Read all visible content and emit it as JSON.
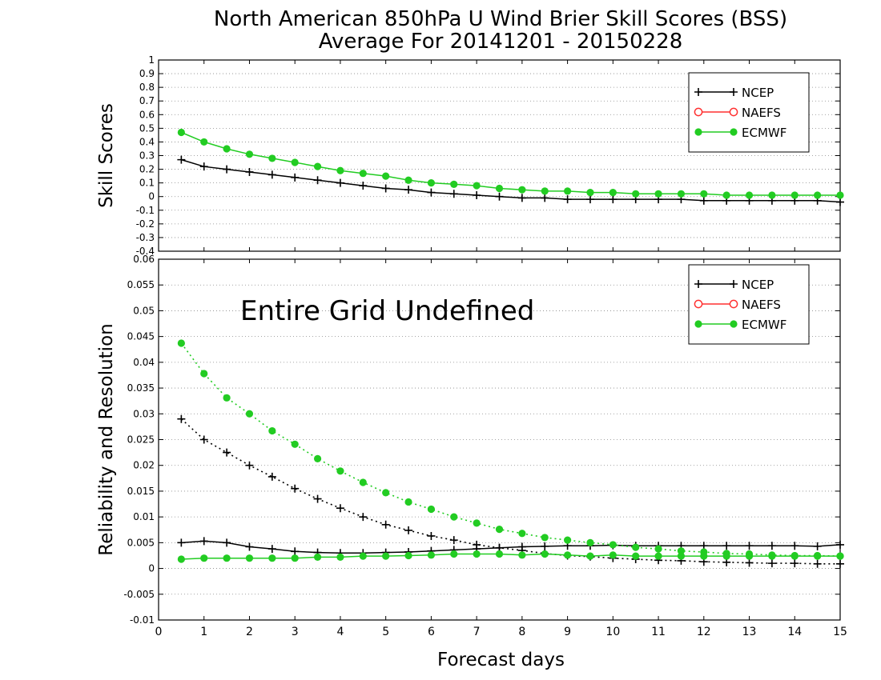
{
  "title": {
    "line1": "North American 850hPa U Wind Brier Skill Scores (BSS)",
    "line2": "Average For 20141201 - 20150228"
  },
  "colors": {
    "NCEP": "#000000",
    "NAEFS": "#ff3030",
    "ECMWF": "#22cc22"
  },
  "chart_data": [
    {
      "type": "line",
      "ylabel": "Skill Scores",
      "xlabel": "",
      "xlim": [
        0,
        15
      ],
      "ylim": [
        -0.4,
        1
      ],
      "x_ticks": [
        0,
        1,
        2,
        3,
        4,
        5,
        6,
        7,
        8,
        9,
        10,
        11,
        12,
        13,
        14,
        15
      ],
      "y_ticks": [
        "-0.4",
        "-0.3",
        "-0.2",
        "-0.1",
        "0",
        "0.1",
        "0.2",
        "0.3",
        "0.4",
        "0.5",
        "0.6",
        "0.7",
        "0.8",
        "0.9",
        "1"
      ],
      "grid": "horizontal dotted",
      "legend_position": "top-right",
      "legend": [
        "NCEP",
        "NAEFS",
        "ECMWF"
      ],
      "x": [
        0.5,
        1,
        1.5,
        2,
        2.5,
        3,
        3.5,
        4,
        4.5,
        5,
        5.5,
        6,
        6.5,
        7,
        7.5,
        8,
        8.5,
        9,
        9.5,
        10,
        10.5,
        11,
        11.5,
        12,
        12.5,
        13,
        13.5,
        14,
        14.5,
        15
      ],
      "series": [
        {
          "name": "NCEP",
          "style": "solid",
          "marker": "plus",
          "values": [
            0.27,
            0.22,
            0.2,
            0.18,
            0.16,
            0.14,
            0.12,
            0.1,
            0.08,
            0.06,
            0.05,
            0.03,
            0.02,
            0.01,
            0.0,
            -0.01,
            -0.01,
            -0.02,
            -0.02,
            -0.02,
            -0.02,
            -0.02,
            -0.02,
            -0.03,
            -0.03,
            -0.03,
            -0.03,
            -0.03,
            -0.03,
            -0.04
          ]
        },
        {
          "name": "ECMWF",
          "style": "solid",
          "marker": "circle",
          "values": [
            0.47,
            0.4,
            0.35,
            0.31,
            0.28,
            0.25,
            0.22,
            0.19,
            0.17,
            0.15,
            0.12,
            0.1,
            0.09,
            0.08,
            0.06,
            0.05,
            0.04,
            0.04,
            0.03,
            0.03,
            0.02,
            0.02,
            0.02,
            0.02,
            0.01,
            0.01,
            0.01,
            0.01,
            0.01,
            0.01
          ]
        }
      ]
    },
    {
      "type": "line",
      "ylabel": "Reliability and Resolution",
      "xlabel": "Forecast days",
      "xlim": [
        0,
        15
      ],
      "ylim": [
        -0.01,
        0.06
      ],
      "x_ticks": [
        0,
        1,
        2,
        3,
        4,
        5,
        6,
        7,
        8,
        9,
        10,
        11,
        12,
        13,
        14,
        15
      ],
      "y_ticks": [
        "-0.01",
        "-0.005",
        "0",
        "0.005",
        "0.01",
        "0.015",
        "0.02",
        "0.025",
        "0.03",
        "0.035",
        "0.04",
        "0.045",
        "0.05",
        "0.055",
        "0.06"
      ],
      "grid": "horizontal dotted",
      "legend_position": "top-right",
      "legend": [
        "NCEP",
        "NAEFS",
        "ECMWF"
      ],
      "annotation": "Entire Grid Undefined",
      "x": [
        0.5,
        1,
        1.5,
        2,
        2.5,
        3,
        3.5,
        4,
        4.5,
        5,
        5.5,
        6,
        6.5,
        7,
        7.5,
        8,
        8.5,
        9,
        9.5,
        10,
        10.5,
        11,
        11.5,
        12,
        12.5,
        13,
        13.5,
        14,
        14.5,
        15
      ],
      "series": [
        {
          "name": "NCEP",
          "style": "solid",
          "marker": "plus",
          "values": [
            0.005,
            0.0053,
            0.005,
            0.0042,
            0.0038,
            0.0033,
            0.0031,
            0.003,
            0.003,
            0.0031,
            0.0032,
            0.0034,
            0.0036,
            0.0038,
            0.004,
            0.0042,
            0.0043,
            0.0044,
            0.0044,
            0.0045,
            0.0044,
            0.0044,
            0.0044,
            0.0044,
            0.0044,
            0.0044,
            0.0044,
            0.0044,
            0.0043,
            0.0046
          ]
        },
        {
          "name": "NCEP",
          "style": "dotted",
          "marker": "plus",
          "values": [
            0.029,
            0.025,
            0.0225,
            0.02,
            0.0178,
            0.0155,
            0.0135,
            0.0117,
            0.01,
            0.0085,
            0.0074,
            0.0063,
            0.0055,
            0.0046,
            0.004,
            0.0035,
            0.0029,
            0.0025,
            0.0023,
            0.002,
            0.0018,
            0.0016,
            0.0015,
            0.0013,
            0.0012,
            0.0011,
            0.001,
            0.001,
            0.0009,
            0.0009
          ]
        },
        {
          "name": "ECMWF",
          "style": "solid",
          "marker": "circle",
          "values": [
            0.0018,
            0.002,
            0.002,
            0.002,
            0.002,
            0.002,
            0.0022,
            0.0022,
            0.0024,
            0.0024,
            0.0025,
            0.0026,
            0.0028,
            0.0028,
            0.0028,
            0.0026,
            0.0028,
            0.0026,
            0.0024,
            0.0026,
            0.0024,
            0.0024,
            0.0024,
            0.0024,
            0.0024,
            0.0024,
            0.0024,
            0.0024,
            0.0024,
            0.0024
          ]
        },
        {
          "name": "ECMWF",
          "style": "dotted",
          "marker": "circle",
          "values": [
            0.0437,
            0.0378,
            0.0331,
            0.03,
            0.0267,
            0.0241,
            0.0213,
            0.0189,
            0.0167,
            0.0147,
            0.0129,
            0.0115,
            0.01,
            0.0088,
            0.0076,
            0.0068,
            0.006,
            0.0055,
            0.005,
            0.0046,
            0.0041,
            0.0038,
            0.0034,
            0.0032,
            0.0029,
            0.0028,
            0.0026,
            0.0025,
            0.0025,
            0.0024
          ]
        }
      ]
    }
  ]
}
